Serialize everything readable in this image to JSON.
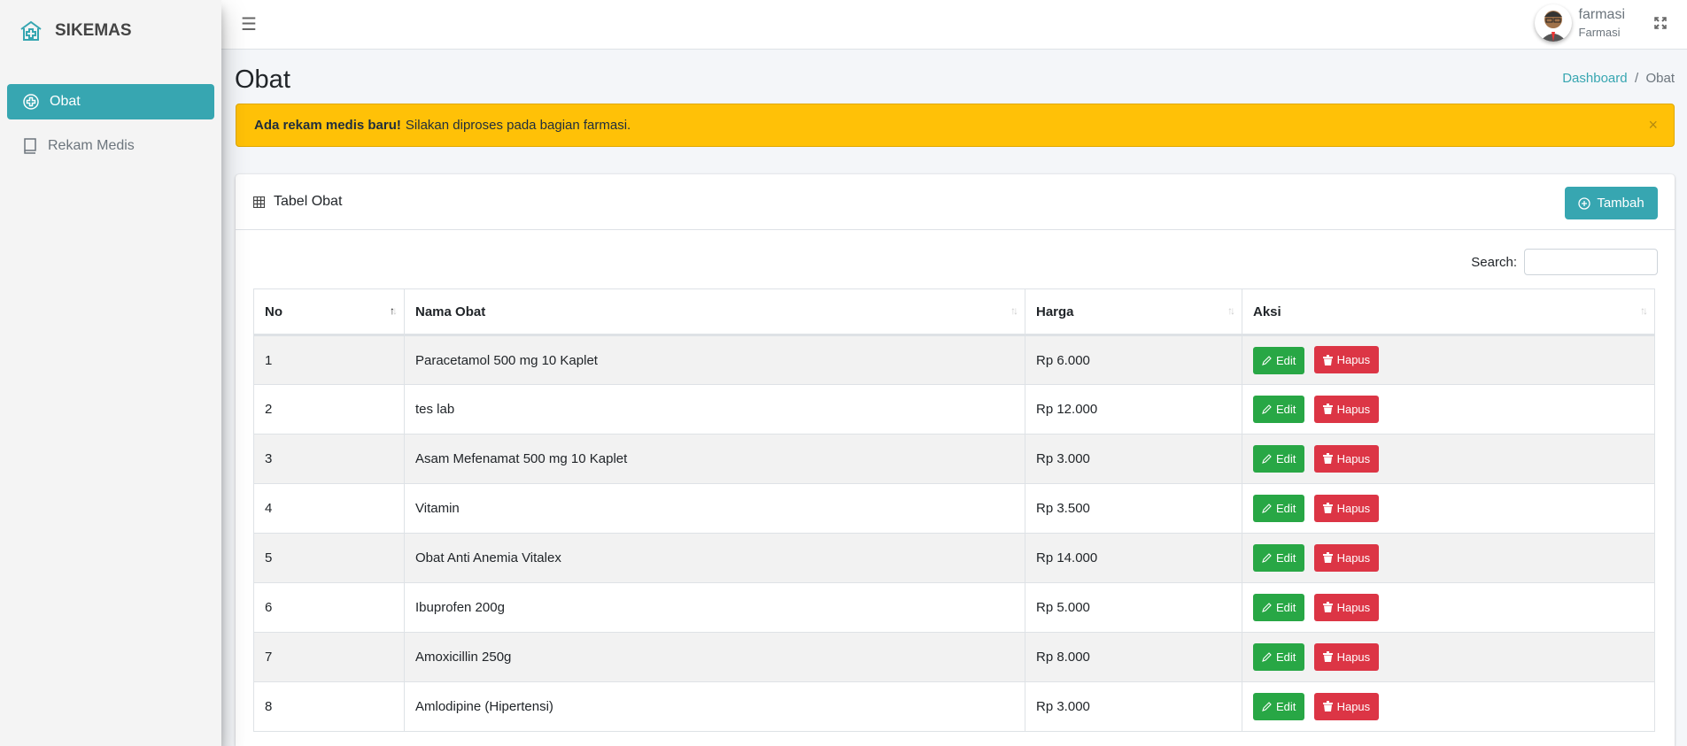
{
  "brand": {
    "name": "SIKEMAS",
    "icon": "hospital-house-icon"
  },
  "sidebar": {
    "items": [
      {
        "label": "Obat",
        "icon": "medical-plus-circle-icon",
        "active": true
      },
      {
        "label": "Rekam Medis",
        "icon": "book-icon",
        "active": false
      }
    ]
  },
  "navbar": {
    "user_name": "farmasi",
    "user_role": "Farmasi"
  },
  "page": {
    "title": "Obat",
    "breadcrumb": [
      "Dashboard",
      "Obat"
    ]
  },
  "alert": {
    "bold": "Ada rekam medis baru!",
    "text": "Silakan diproses pada bagian farmasi.",
    "close": "×"
  },
  "card": {
    "title": "Tabel Obat",
    "add_label": "Tambah",
    "search_label": "Search:",
    "search_value": ""
  },
  "table": {
    "columns": [
      "No",
      "Nama Obat",
      "Harga",
      "Aksi"
    ],
    "sort_column": "No",
    "sort_dir": "asc",
    "edit_label": "Edit",
    "delete_label": "Hapus",
    "rows": [
      [
        "1",
        "Paracetamol 500 mg 10 Kaplet",
        "Rp 6.000"
      ],
      [
        "2",
        "tes lab",
        "Rp 12.000"
      ],
      [
        "3",
        "Asam Mefenamat 500 mg 10 Kaplet",
        "Rp 3.000"
      ],
      [
        "4",
        "Vitamin",
        "Rp 3.500"
      ],
      [
        "5",
        "Obat Anti Anemia Vitalex",
        "Rp 14.000"
      ],
      [
        "6",
        "Ibuprofen 200g",
        "Rp 5.000"
      ],
      [
        "7",
        "Amoxicillin 250g",
        "Rp 8.000"
      ],
      [
        "8",
        "Amlodipine (Hipertensi)",
        "Rp 3.000"
      ]
    ]
  },
  "colors": {
    "primary": "#37a6b1",
    "warning": "#ffc107",
    "success": "#28a745",
    "danger": "#dc3545"
  }
}
